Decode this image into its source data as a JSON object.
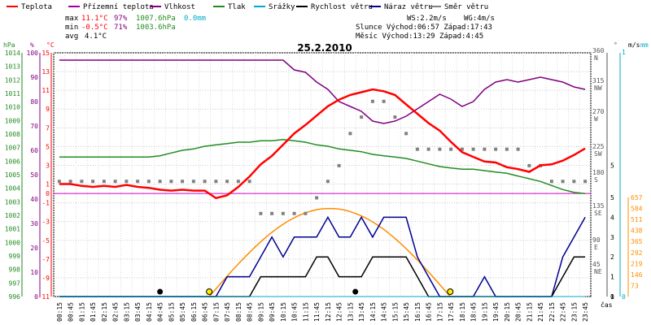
{
  "legend": [
    {
      "label": "Teplota",
      "color": "#ff0000"
    },
    {
      "label": "Přízemní teplota",
      "color": "#a000a0"
    },
    {
      "label": "Vlhkost",
      "color": "#800080"
    },
    {
      "label": "Tlak",
      "color": "#228b22"
    },
    {
      "label": "Srážky",
      "color": "#00aacc"
    },
    {
      "label": "Rychlost větru",
      "color": "#000000"
    },
    {
      "label": "Náraz větru",
      "color": "#000090"
    },
    {
      "label": "Směr větru",
      "color": "#808080"
    }
  ],
  "stats": {
    "max_label": "max",
    "max_temp": "11.1°C",
    "max_hum": "97%",
    "max_press": "1007.6hPa",
    "rain": "0.0mm",
    "min_label": "min",
    "min_temp": "-0.5°C",
    "min_hum": "71%",
    "min_press": "1003.6hPa",
    "avg_label": "avg",
    "avg_temp": "4.1°C",
    "ws": "WS:2.2m/s",
    "wg": "WG:4m/s",
    "sun": "Slunce Východ:06:57  Západ:17:43",
    "moon": "Měsíc  Východ:13:29  Západ:4:45"
  },
  "unit_labels": {
    "hpa": "hPa",
    "pct": "%",
    "degc": "°C",
    "deg": "°",
    "ms": "m/s",
    "mm": "mm",
    "cas": "čas"
  },
  "chart_data": {
    "type": "line",
    "title": "25.2.2010",
    "xlabel": "čas",
    "x_ticks": [
      "00:15",
      "00:45",
      "01:15",
      "01:45",
      "02:15",
      "02:45",
      "03:15",
      "03:45",
      "04:15",
      "04:45",
      "05:15",
      "05:45",
      "06:15",
      "06:45",
      "07:15",
      "07:45",
      "08:15",
      "08:45",
      "09:15",
      "09:45",
      "10:15",
      "10:45",
      "11:15",
      "11:45",
      "12:15",
      "12:45",
      "13:15",
      "13:45",
      "14:15",
      "14:45",
      "15:15",
      "15:45",
      "16:15",
      "16:45",
      "17:15",
      "17:45",
      "18:15",
      "18:45",
      "19:15",
      "19:45",
      "20:15",
      "20:45",
      "21:15",
      "21:45",
      "22:15",
      "22:45",
      "23:15",
      "23:45"
    ],
    "axes": {
      "pressure_hpa": {
        "min": 996,
        "max": 1014,
        "ticks": [
          996,
          997,
          998,
          999,
          1000,
          1001,
          1002,
          1003,
          1004,
          1005,
          1006,
          1007,
          1008,
          1009,
          1010,
          1011,
          1012,
          1013,
          1014
        ]
      },
      "humidity_pct": {
        "min": 0,
        "max": 100,
        "ticks": [
          0,
          10,
          20,
          30,
          40,
          50,
          60,
          70,
          80,
          90,
          100
        ]
      },
      "temperature_c": {
        "min": -11,
        "max": 15,
        "ticks": [
          -11,
          -9,
          -7,
          -5,
          -3,
          -1,
          1,
          3,
          5,
          7,
          9,
          11,
          13,
          15
        ]
      },
      "temp_zero_label": "0",
      "wind_dir_deg": {
        "ticks": [
          {
            "v": "360",
            "c": "N"
          },
          {
            "v": "315",
            "c": "NW"
          },
          {
            "v": "270",
            "c": "W"
          },
          {
            "v": "225",
            "c": "SW"
          },
          {
            "v": "180",
            "c": "S"
          },
          {
            "v": "135",
            "c": "SE"
          },
          {
            "v": "90",
            "c": "E"
          },
          {
            "v": "45",
            "c": "NE"
          }
        ]
      },
      "wind_ms": {
        "ticks_upper": [
          {
            "v": "1",
            "t": -11
          },
          {
            "v": "5",
            "t": 3
          }
        ],
        "ticks_lower": [
          "5",
          "4",
          "3",
          "2",
          "1",
          "0"
        ]
      },
      "rain_mm": {
        "ticks": [
          "0",
          "1"
        ]
      },
      "solar": {
        "ticks": [
          "73",
          "146",
          "219",
          "292",
          "365",
          "438",
          "511",
          "584",
          "657"
        ]
      }
    },
    "series": [
      {
        "name": "Teplota",
        "unit": "°C",
        "color": "#ff0000",
        "values": [
          1,
          1,
          0.8,
          0.7,
          0.8,
          0.7,
          0.9,
          0.7,
          0.6,
          0.4,
          0.3,
          0.4,
          0.3,
          0.3,
          -0.5,
          -0.2,
          0.7,
          1.8,
          3.1,
          4,
          5.2,
          6.4,
          7.3,
          8.3,
          9.3,
          10,
          10.5,
          10.8,
          11.1,
          10.9,
          10.5,
          9.5,
          8.5,
          7.5,
          6.7,
          5.5,
          4.4,
          3.9,
          3.4,
          3.3,
          2.8,
          2.6,
          2.3,
          3,
          3.1,
          3.5,
          4.1,
          4.8
        ]
      },
      {
        "name": "Vlhkost",
        "unit": "%",
        "color": "#800080",
        "values": [
          97,
          97,
          97,
          97,
          97,
          97,
          97,
          97,
          97,
          97,
          97,
          97,
          97,
          97,
          97,
          97,
          97,
          97,
          97,
          97,
          97,
          93,
          92,
          88,
          85,
          80,
          78,
          76,
          72,
          71,
          72,
          74,
          77,
          80,
          83,
          81,
          78,
          80,
          85,
          88,
          89,
          88,
          89,
          90,
          89,
          88,
          86,
          85
        ]
      },
      {
        "name": "Tlak",
        "unit": "hPa",
        "color": "#228b22",
        "values": [
          1006.3,
          1006.3,
          1006.3,
          1006.3,
          1006.3,
          1006.3,
          1006.3,
          1006.3,
          1006.3,
          1006.4,
          1006.6,
          1006.8,
          1006.9,
          1007.1,
          1007.2,
          1007.3,
          1007.4,
          1007.4,
          1007.5,
          1007.5,
          1007.6,
          1007.5,
          1007.4,
          1007.2,
          1007.1,
          1006.9,
          1006.8,
          1006.7,
          1006.5,
          1006.4,
          1006.3,
          1006.2,
          1006.0,
          1005.8,
          1005.6,
          1005.5,
          1005.4,
          1005.4,
          1005.3,
          1005.2,
          1005.1,
          1004.9,
          1004.7,
          1004.5,
          1004.2,
          1003.9,
          1003.7,
          1003.6
        ]
      },
      {
        "name": "Rychlost větru",
        "unit": "m/s",
        "color": "#000000",
        "values": [
          0,
          0,
          0,
          0,
          0,
          0,
          0,
          0,
          0,
          0,
          0,
          0,
          0,
          0,
          0,
          0,
          0,
          0,
          1,
          1,
          1,
          1,
          1,
          2,
          2,
          1,
          1,
          1,
          2,
          2,
          2,
          2,
          1,
          0,
          0,
          0,
          0,
          0,
          0,
          0,
          0,
          0,
          0,
          0,
          0,
          1,
          2,
          2
        ]
      },
      {
        "name": "Náraz větru",
        "unit": "m/s",
        "color": "#000090",
        "values": [
          0,
          0,
          0,
          0,
          0,
          0,
          0,
          0,
          0,
          0,
          0,
          0,
          0,
          0,
          0,
          1,
          1,
          1,
          2,
          3,
          2,
          3,
          3,
          3,
          4,
          3,
          3,
          4,
          3,
          4,
          4,
          4,
          2,
          1,
          0,
          0,
          0,
          0,
          1,
          0,
          0,
          0,
          0,
          0,
          0,
          2,
          3,
          4
        ]
      },
      {
        "name": "Směr větru",
        "unit": "°",
        "color": "#808080",
        "values": [
          180,
          180,
          180,
          180,
          180,
          180,
          180,
          180,
          180,
          180,
          180,
          180,
          180,
          180,
          180,
          180,
          180,
          180,
          135,
          135,
          135,
          135,
          135,
          157,
          180,
          202,
          247,
          270,
          292,
          292,
          270,
          247,
          225,
          225,
          225,
          225,
          225,
          225,
          225,
          225,
          225,
          225,
          202,
          202,
          180,
          180,
          180,
          180
        ]
      },
      {
        "name": "Srážky",
        "unit": "mm",
        "color": "#00aacc",
        "values": [
          0,
          0,
          0,
          0,
          0,
          0,
          0,
          0,
          0,
          0,
          0,
          0,
          0,
          0,
          0,
          0,
          0,
          0,
          0,
          0,
          0,
          0,
          0,
          0,
          0,
          0,
          0,
          0,
          0,
          0,
          0,
          0,
          0,
          0,
          0,
          0,
          0,
          0,
          0,
          0,
          0,
          0,
          0,
          0,
          0,
          0,
          0,
          0
        ]
      }
    ],
    "solar_curve": {
      "color": "#ff8c00",
      "rise_hours": 6.95,
      "set_hours": 17.72,
      "max": 584
    },
    "markers": {
      "sunrise_hours": 6.95,
      "sunset_hours": 17.72,
      "moonrise_hours": 13.48,
      "moonset_hours": 4.75
    }
  }
}
